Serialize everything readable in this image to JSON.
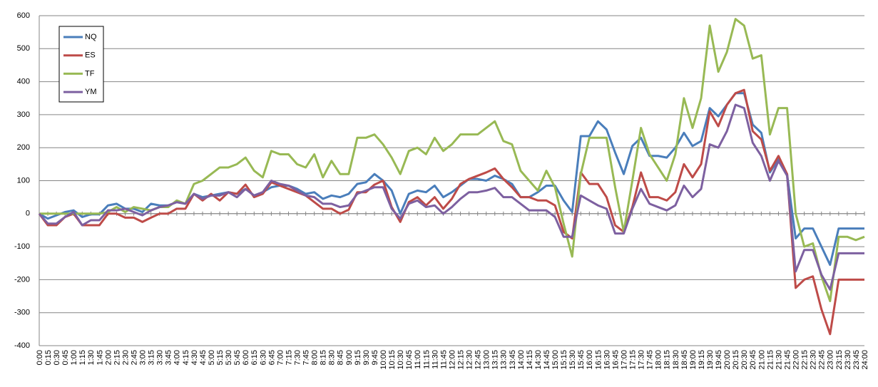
{
  "chart_data": {
    "type": "line",
    "categories": [
      "0:00",
      "0:15",
      "0:30",
      "0:45",
      "1:00",
      "1:15",
      "1:30",
      "1:45",
      "2:00",
      "2:15",
      "2:30",
      "2:45",
      "3:00",
      "3:15",
      "3:30",
      "3:45",
      "4:00",
      "4:15",
      "4:30",
      "4:45",
      "5:00",
      "5:15",
      "5:30",
      "5:45",
      "6:00",
      "6:15",
      "6:30",
      "6:45",
      "7:00",
      "7:15",
      "7:30",
      "7:45",
      "8:00",
      "8:15",
      "8:30",
      "8:45",
      "9:00",
      "9:15",
      "9:30",
      "9:45",
      "10:00",
      "10:15",
      "10:30",
      "10:45",
      "11:00",
      "11:15",
      "11:30",
      "11:45",
      "12:00",
      "12:15",
      "12:30",
      "12:45",
      "13:00",
      "13:15",
      "13:30",
      "13:45",
      "14:00",
      "14:15",
      "14:30",
      "14:45",
      "15:00",
      "15:15",
      "15:30",
      "15:45",
      "16:00",
      "16:15",
      "16:30",
      "16:45",
      "17:00",
      "17:15",
      "17:30",
      "17:45",
      "18:00",
      "18:15",
      "18:30",
      "18:45",
      "19:00",
      "19:15",
      "19:30",
      "19:45",
      "20:00",
      "20:15",
      "20:30",
      "20:45",
      "21:00",
      "21:15",
      "21:30",
      "21:45",
      "22:00",
      "22:15",
      "22:30",
      "22:45",
      "23:00",
      "23:15",
      "23:30",
      "23:45",
      "24:00"
    ],
    "series": [
      {
        "name": "NQ",
        "color": "#4a7ebb",
        "values": [
          0,
          -15,
          -5,
          5,
          10,
          -10,
          -2,
          -2,
          25,
          30,
          15,
          15,
          5,
          30,
          25,
          25,
          35,
          30,
          60,
          50,
          55,
          60,
          65,
          60,
          75,
          55,
          65,
          80,
          85,
          85,
          75,
          60,
          65,
          45,
          55,
          50,
          60,
          90,
          95,
          120,
          100,
          70,
          0,
          60,
          70,
          65,
          85,
          50,
          65,
          85,
          105,
          105,
          100,
          115,
          105,
          90,
          50,
          50,
          65,
          85,
          85,
          40,
          5,
          235,
          235,
          280,
          255,
          185,
          120,
          205,
          230,
          175,
          175,
          170,
          200,
          245,
          205,
          220,
          320,
          295,
          330,
          365,
          365,
          270,
          245,
          125,
          165,
          120,
          -75,
          -45,
          -45,
          -100,
          -155,
          -45,
          -45,
          -45,
          -45
        ]
      },
      {
        "name": "ES",
        "color": "#be4b48",
        "values": [
          0,
          -35,
          -35,
          -10,
          0,
          -35,
          -35,
          -35,
          0,
          0,
          -12,
          -12,
          -25,
          -12,
          0,
          0,
          15,
          15,
          60,
          40,
          60,
          40,
          65,
          60,
          88,
          50,
          60,
          95,
          85,
          75,
          65,
          55,
          35,
          15,
          15,
          0,
          12,
          65,
          65,
          88,
          100,
          20,
          -25,
          35,
          50,
          25,
          50,
          15,
          45,
          90,
          105,
          115,
          125,
          137,
          105,
          80,
          50,
          50,
          40,
          40,
          25,
          -55,
          -75,
          125,
          90,
          90,
          50,
          -35,
          -55,
          20,
          125,
          50,
          50,
          40,
          65,
          150,
          110,
          150,
          310,
          265,
          330,
          365,
          375,
          250,
          225,
          130,
          175,
          120,
          -225,
          -200,
          -190,
          -290,
          -365,
          -200,
          -200,
          -200,
          -200
        ]
      },
      {
        "name": "TF",
        "color": "#98b954",
        "values": [
          0,
          0,
          0,
          0,
          0,
          0,
          0,
          0,
          5,
          20,
          5,
          20,
          15,
          10,
          20,
          20,
          40,
          30,
          90,
          100,
          120,
          140,
          140,
          150,
          170,
          130,
          110,
          190,
          180,
          180,
          150,
          140,
          180,
          110,
          160,
          120,
          120,
          230,
          230,
          240,
          210,
          170,
          120,
          190,
          200,
          180,
          230,
          190,
          210,
          240,
          240,
          240,
          260,
          280,
          220,
          210,
          130,
          100,
          70,
          130,
          80,
          -30,
          -130,
          120,
          230,
          230,
          230,
          80,
          -55,
          100,
          260,
          180,
          140,
          100,
          180,
          350,
          260,
          350,
          570,
          430,
          490,
          590,
          570,
          470,
          480,
          240,
          320,
          320,
          0,
          -100,
          -90,
          -190,
          -265,
          -70,
          -70,
          -80,
          -70
        ]
      },
      {
        "name": "YM",
        "color": "#7d60a0",
        "values": [
          0,
          -30,
          -30,
          -10,
          5,
          -35,
          -20,
          -20,
          10,
          10,
          15,
          5,
          -5,
          10,
          20,
          25,
          35,
          30,
          60,
          45,
          55,
          55,
          65,
          50,
          75,
          55,
          65,
          100,
          90,
          85,
          70,
          55,
          50,
          30,
          30,
          20,
          25,
          60,
          70,
          80,
          80,
          15,
          -15,
          30,
          40,
          20,
          25,
          0,
          20,
          45,
          65,
          65,
          70,
          78,
          50,
          50,
          30,
          10,
          10,
          10,
          -10,
          -70,
          -70,
          55,
          40,
          25,
          15,
          -60,
          -60,
          15,
          75,
          30,
          20,
          10,
          25,
          85,
          50,
          75,
          210,
          200,
          250,
          330,
          320,
          215,
          175,
          100,
          160,
          115,
          -175,
          -110,
          -110,
          -185,
          -230,
          -120,
          -120,
          -120,
          -120
        ]
      }
    ],
    "ylim": [
      -400,
      600
    ],
    "yticks": [
      -400,
      -300,
      -200,
      -100,
      0,
      100,
      200,
      300,
      400,
      500,
      600
    ],
    "grid": true,
    "legend": "top-left"
  }
}
